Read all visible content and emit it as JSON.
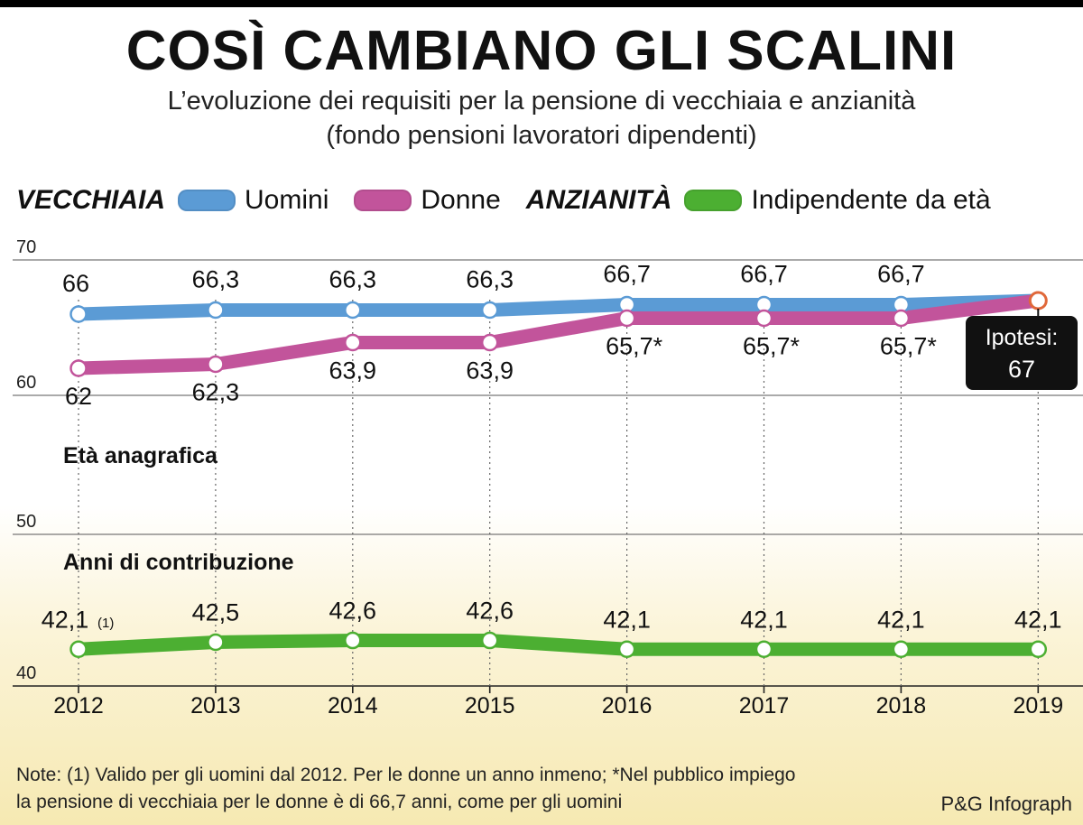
{
  "header": {
    "title": "COSÌ CAMBIANO GLI SCALINI",
    "subtitle_line1": "L’evoluzione dei requisiti per la pensione di vecchiaia e anzianità",
    "subtitle_line2": "(fondo pensioni lavoratori dipendenti)"
  },
  "legend": {
    "group1": "VECCHIAIA",
    "series1": "Uomini",
    "series2": "Donne",
    "group2": "ANZIANITÀ",
    "series3": "Indipendente da età"
  },
  "colors": {
    "uomini": "#5b9bd5",
    "donne": "#c2549b",
    "anzianita": "#4caf32",
    "ipotesi_box": "#111111",
    "ipotesi_marker": "#e0683a"
  },
  "chart_data": {
    "type": "line",
    "categories": [
      "2012",
      "2013",
      "2014",
      "2015",
      "2016",
      "2017",
      "2018",
      "2019"
    ],
    "y_ticks": [
      "70",
      "60",
      "50",
      "40"
    ],
    "section_labels": {
      "eta": "Età anagrafica",
      "contributi": "Anni di contribuzione"
    },
    "series": [
      {
        "name": "Uomini",
        "values": [
          66,
          66.3,
          66.3,
          66.3,
          66.7,
          66.7,
          66.7,
          67
        ],
        "labels": [
          "66",
          "66,3",
          "66,3",
          "66,3",
          "66,7",
          "66,7",
          "66,7",
          ""
        ]
      },
      {
        "name": "Donne",
        "values": [
          62,
          62.3,
          63.9,
          63.9,
          65.7,
          65.7,
          65.7,
          67
        ],
        "labels": [
          "62",
          "62,3",
          "63,9",
          "63,9",
          "65,7*",
          "65,7*",
          "65,7*",
          ""
        ]
      },
      {
        "name": "Indipendente da età",
        "values": [
          42.1,
          42.5,
          42.6,
          42.6,
          42.1,
          42.1,
          42.1,
          42.1
        ],
        "labels": [
          "42,1",
          "42,5",
          "42,6",
          "42,6",
          "42,1",
          "42,1",
          "42,1",
          "42,1"
        ],
        "first_label_note": "(1)"
      }
    ],
    "annotation": {
      "line1": "Ipotesi:",
      "line2": "67"
    }
  },
  "notes": {
    "line1": "Note: (1) Valido per gli uomini dal 2012. Per le donne un anno inmeno; *Nel pubblico impiego",
    "line2": "la pensione di vecchiaia per le donne è di 66,7 anni, come per gli uomini"
  },
  "credit": "P&G Infograph"
}
